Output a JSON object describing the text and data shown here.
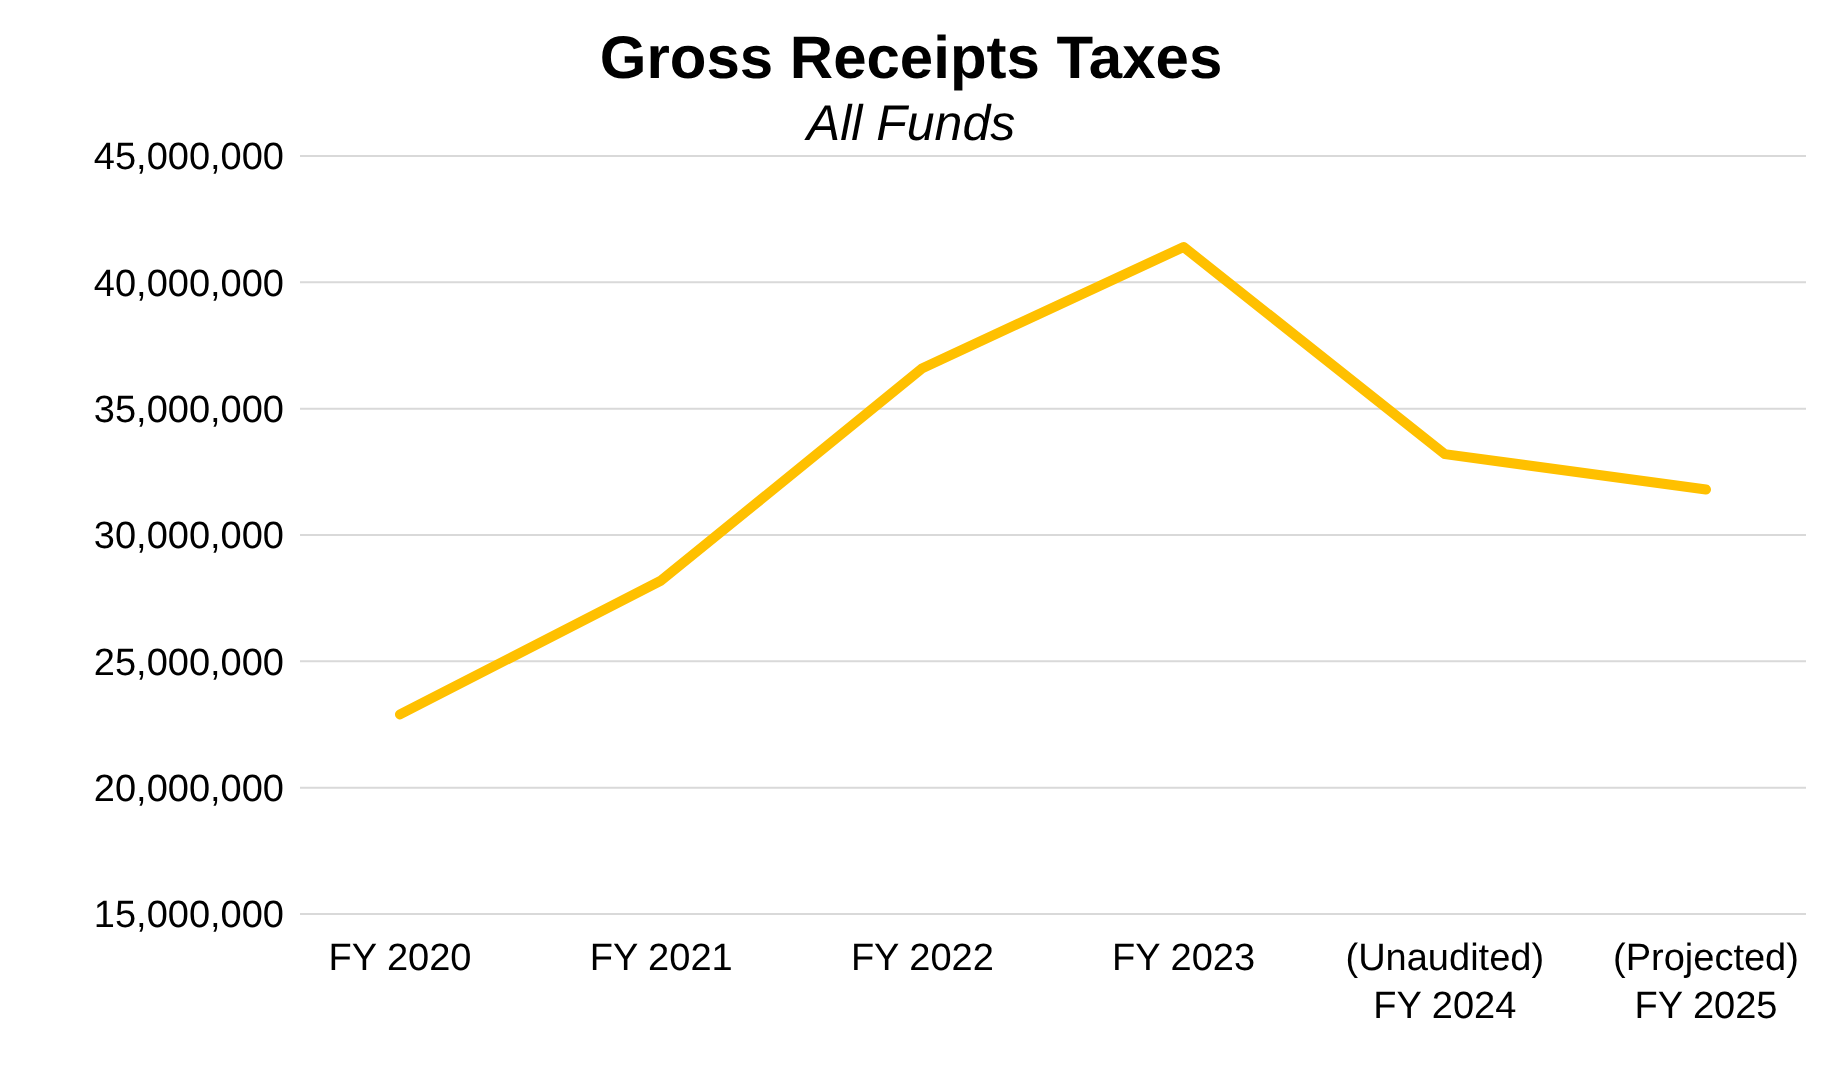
{
  "chart_data": {
    "type": "line",
    "title": "Gross Receipts Taxes",
    "subtitle": "All Funds",
    "categories": [
      "FY 2020",
      "FY 2021",
      "FY 2022",
      "FY 2023",
      "(Unaudited)\nFY 2024",
      "(Projected)\nFY 2025"
    ],
    "series": [
      {
        "color": "#ffc000",
        "values": [
          22900000,
          28200000,
          36600000,
          41400000,
          33200000,
          31800000
        ]
      }
    ],
    "ylim": [
      15000000,
      45000000
    ],
    "yticks": [
      {
        "value": 15000000,
        "label": "15,000,000"
      },
      {
        "value": 20000000,
        "label": "20,000,000"
      },
      {
        "value": 25000000,
        "label": "25,000,000"
      },
      {
        "value": 30000000,
        "label": "30,000,000"
      },
      {
        "value": 35000000,
        "label": "35,000,000"
      },
      {
        "value": 40000000,
        "label": "40,000,000"
      },
      {
        "value": 45000000,
        "label": "45,000,000"
      }
    ],
    "grid": "y",
    "legend": false,
    "marker": "none",
    "line_style": "solid"
  }
}
